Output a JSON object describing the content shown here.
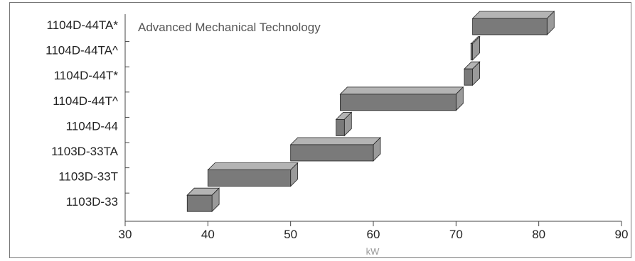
{
  "chart_data": {
    "type": "bar",
    "orientation": "horizontal",
    "style": "floating-range-3d",
    "subtitle": "Advanced Mechanical Technology",
    "xlabel": "kW",
    "ylabel": "",
    "xlim": [
      30,
      90
    ],
    "xticks": [
      30,
      40,
      50,
      60,
      70,
      80,
      90
    ],
    "grid": false,
    "categories": [
      "1104D-44TA*",
      "1104D-44TA^",
      "1104D-44T*",
      "1104D-44T^",
      "1104D-44",
      "1103D-33TA",
      "1103D-33T",
      "1103D-33"
    ],
    "ranges": [
      {
        "category": "1104D-44TA*",
        "min": 72,
        "max": 81
      },
      {
        "category": "1104D-44TA^",
        "min": 71.8,
        "max": 72
      },
      {
        "category": "1104D-44T*",
        "min": 71,
        "max": 72
      },
      {
        "category": "1104D-44T^",
        "min": 56,
        "max": 70
      },
      {
        "category": "1104D-44",
        "min": 55.5,
        "max": 56.5
      },
      {
        "category": "1103D-33TA",
        "min": 50,
        "max": 60
      },
      {
        "category": "1103D-33T",
        "min": 40,
        "max": 50
      },
      {
        "category": "1103D-33",
        "min": 37.5,
        "max": 40.5
      }
    ],
    "colors": {
      "bar_front": "#7a7a7a",
      "bar_top": "#b4b4b4",
      "bar_side": "#9a9a9a",
      "outline": "#222222",
      "axis": "#444444"
    }
  }
}
